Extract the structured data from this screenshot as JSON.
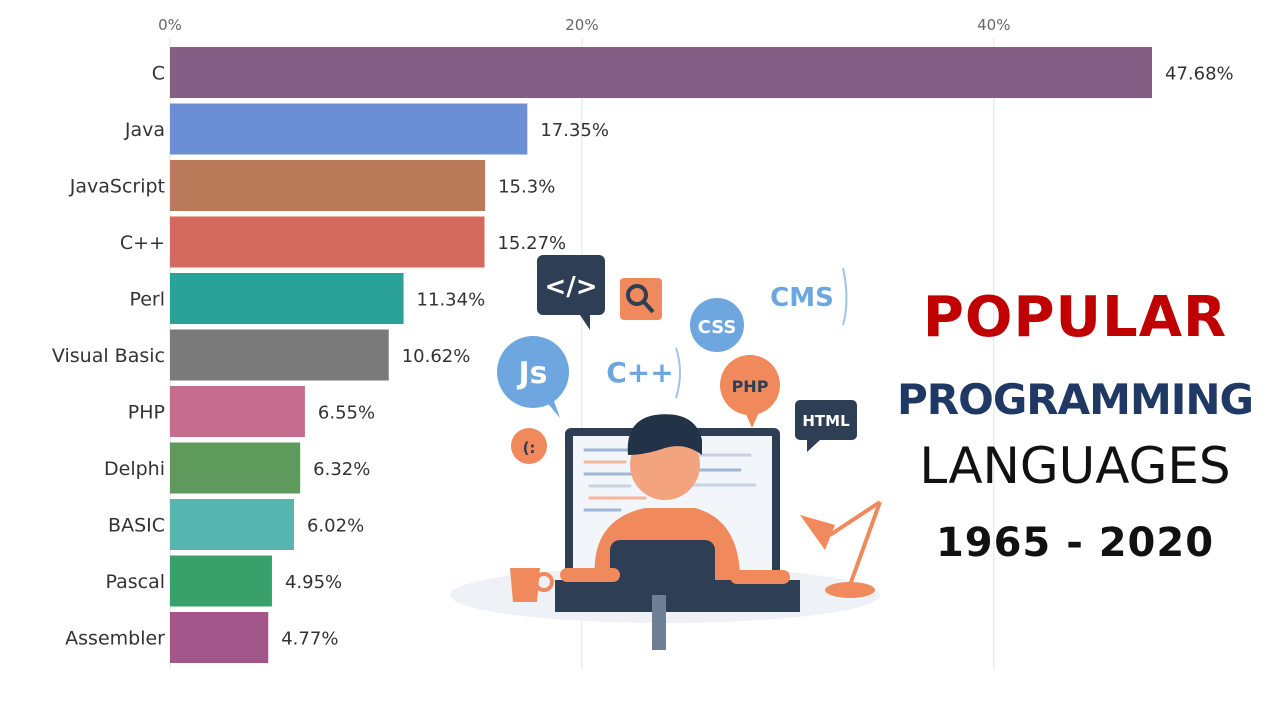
{
  "chart_data": {
    "type": "bar",
    "orientation": "horizontal",
    "categories": [
      "C",
      "Java",
      "JavaScript",
      "C++",
      "Perl",
      "Visual Basic",
      "PHP",
      "Delphi",
      "BASIC",
      "Pascal",
      "Assembler"
    ],
    "values": [
      47.68,
      17.35,
      15.3,
      15.27,
      11.34,
      10.62,
      6.55,
      6.32,
      6.02,
      4.95,
      4.77
    ],
    "value_labels": [
      "47.68%",
      "17.35%",
      "15.3%",
      "15.27%",
      "11.34%",
      "10.62%",
      "6.55%",
      "6.32%",
      "6.02%",
      "4.95%",
      "4.77%"
    ],
    "colors": [
      "#855e86",
      "#6b8fd4",
      "#b87a58",
      "#d4695e",
      "#2aa199",
      "#7a7a7a",
      "#c56d8e",
      "#5e9a5c",
      "#57b5b0",
      "#38a06a",
      "#a35689"
    ],
    "x_ticks": [
      0,
      20,
      40
    ],
    "x_tick_labels": [
      "0%",
      "20%",
      "40%"
    ],
    "xlim": [
      0,
      47.68
    ],
    "grid": true
  },
  "title": {
    "line1": "POPULAR",
    "line2": "PROGRAMMING",
    "line3": "LANGUAGES",
    "line4": "1965 - 2020"
  },
  "illustration": {
    "code_tag": "</>",
    "js_badge": "Js",
    "cpp_badge": "C++",
    "css_badge": "CSS",
    "cms_badge": "CMS",
    "php_badge": "PHP",
    "html_badge": "HTML",
    "smiley": "(:",
    "colors": {
      "navy": "#2d3e55",
      "blue": "#6ea6e0",
      "orange": "#f08a5d",
      "skin": "#f3a47f"
    }
  }
}
